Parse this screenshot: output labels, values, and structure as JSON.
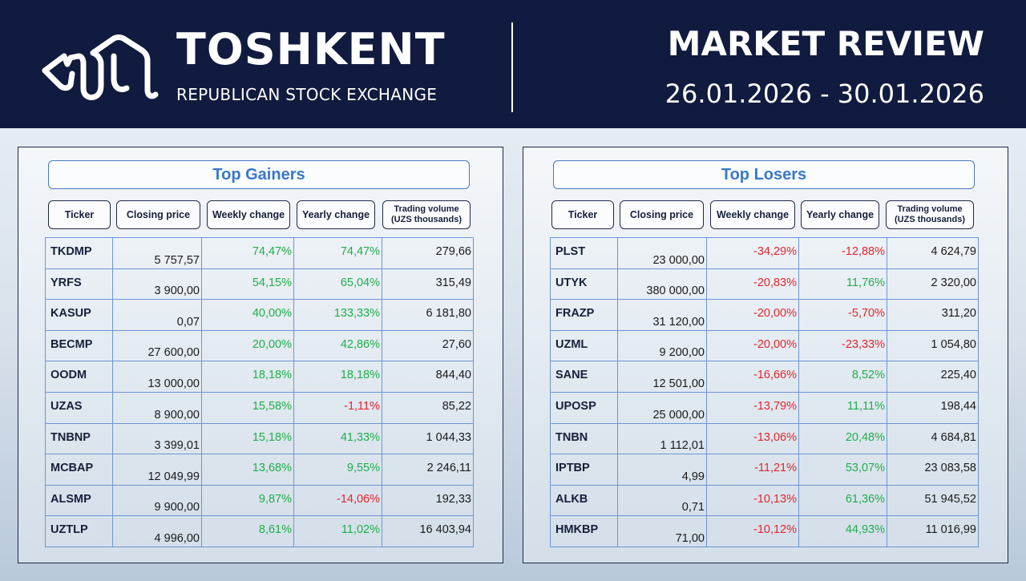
{
  "header": {
    "brand_name": "TOSHKENT",
    "brand_sub": "REPUBLICAN STOCK EXCHANGE",
    "review_title": "MARKET REVIEW",
    "review_dates": "26.01.2026 - 30.01.2026",
    "logo_icon": "exchange-logo-icon"
  },
  "colors": {
    "header_bg": "#111b3f",
    "positive": "#1fae4b",
    "negative": "#e3262b",
    "accent": "#3a78c9"
  },
  "columns": {
    "ticker": "Ticker",
    "closing_price": "Closing price",
    "weekly_change": "Weekly change",
    "yearly_change": "Yearly change",
    "trading_volume": "Trading volume (UZS thousands)"
  },
  "gainers": {
    "title": "Top Gainers",
    "rows": [
      {
        "ticker": "TKDMP",
        "close": "5 757,57",
        "weekly": "74,47%",
        "yearly": "74,47%",
        "volume": "279,66",
        "wk_sign": "pos",
        "yr_sign": "pos"
      },
      {
        "ticker": "YRFS",
        "close": "3 900,00",
        "weekly": "54,15%",
        "yearly": "65,04%",
        "volume": "315,49",
        "wk_sign": "pos",
        "yr_sign": "pos"
      },
      {
        "ticker": "KASUP",
        "close": "0,07",
        "weekly": "40,00%",
        "yearly": "133,33%",
        "volume": "6 181,80",
        "wk_sign": "pos",
        "yr_sign": "pos"
      },
      {
        "ticker": "BECMP",
        "close": "27 600,00",
        "weekly": "20,00%",
        "yearly": "42,86%",
        "volume": "27,60",
        "wk_sign": "pos",
        "yr_sign": "pos"
      },
      {
        "ticker": "OODM",
        "close": "13 000,00",
        "weekly": "18,18%",
        "yearly": "18,18%",
        "volume": "844,40",
        "wk_sign": "pos",
        "yr_sign": "pos"
      },
      {
        "ticker": "UZAS",
        "close": "8 900,00",
        "weekly": "15,58%",
        "yearly": "-1,11%",
        "volume": "85,22",
        "wk_sign": "pos",
        "yr_sign": "neg"
      },
      {
        "ticker": "TNBNP",
        "close": "3 399,01",
        "weekly": "15,18%",
        "yearly": "41,33%",
        "volume": "1 044,33",
        "wk_sign": "pos",
        "yr_sign": "pos"
      },
      {
        "ticker": "MCBAP",
        "close": "12 049,99",
        "weekly": "13,68%",
        "yearly": "9,55%",
        "volume": "2 246,11",
        "wk_sign": "pos",
        "yr_sign": "pos"
      },
      {
        "ticker": "ALSMP",
        "close": "9 900,00",
        "weekly": "9,87%",
        "yearly": "-14,06%",
        "volume": "192,33",
        "wk_sign": "pos",
        "yr_sign": "neg"
      },
      {
        "ticker": "UZTLP",
        "close": "4 996,00",
        "weekly": "8,61%",
        "yearly": "11,02%",
        "volume": "16 403,94",
        "wk_sign": "pos",
        "yr_sign": "pos"
      }
    ]
  },
  "losers": {
    "title": "Top Losers",
    "rows": [
      {
        "ticker": "PLST",
        "close": "23 000,00",
        "weekly": "-34,29%",
        "yearly": "-12,88%",
        "volume": "4 624,79",
        "wk_sign": "neg",
        "yr_sign": "neg"
      },
      {
        "ticker": "UTYK",
        "close": "380 000,00",
        "weekly": "-20,83%",
        "yearly": "11,76%",
        "volume": "2 320,00",
        "wk_sign": "neg",
        "yr_sign": "pos"
      },
      {
        "ticker": "FRAZP",
        "close": "31 120,00",
        "weekly": "-20,00%",
        "yearly": "-5,70%",
        "volume": "311,20",
        "wk_sign": "neg",
        "yr_sign": "neg"
      },
      {
        "ticker": "UZML",
        "close": "9 200,00",
        "weekly": "-20,00%",
        "yearly": "-23,33%",
        "volume": "1 054,80",
        "wk_sign": "neg",
        "yr_sign": "neg"
      },
      {
        "ticker": "SANE",
        "close": "12 501,00",
        "weekly": "-16,66%",
        "yearly": "8,52%",
        "volume": "225,40",
        "wk_sign": "neg",
        "yr_sign": "pos"
      },
      {
        "ticker": "UPOSP",
        "close": "25 000,00",
        "weekly": "-13,79%",
        "yearly": "11,11%",
        "volume": "198,44",
        "wk_sign": "neg",
        "yr_sign": "pos"
      },
      {
        "ticker": "TNBN",
        "close": "1 112,01",
        "weekly": "-13,06%",
        "yearly": "20,48%",
        "volume": "4 684,81",
        "wk_sign": "neg",
        "yr_sign": "pos"
      },
      {
        "ticker": "IPTBP",
        "close": "4,99",
        "weekly": "-11,21%",
        "yearly": "53,07%",
        "volume": "23 083,58",
        "wk_sign": "neg",
        "yr_sign": "pos"
      },
      {
        "ticker": "ALKB",
        "close": "0,71",
        "weekly": "-10,13%",
        "yearly": "61,36%",
        "volume": "51 945,52",
        "wk_sign": "neg",
        "yr_sign": "pos"
      },
      {
        "ticker": "HMKBP",
        "close": "71,00",
        "weekly": "-10,12%",
        "yearly": "44,93%",
        "volume": "11 016,99",
        "wk_sign": "neg",
        "yr_sign": "pos"
      }
    ]
  }
}
